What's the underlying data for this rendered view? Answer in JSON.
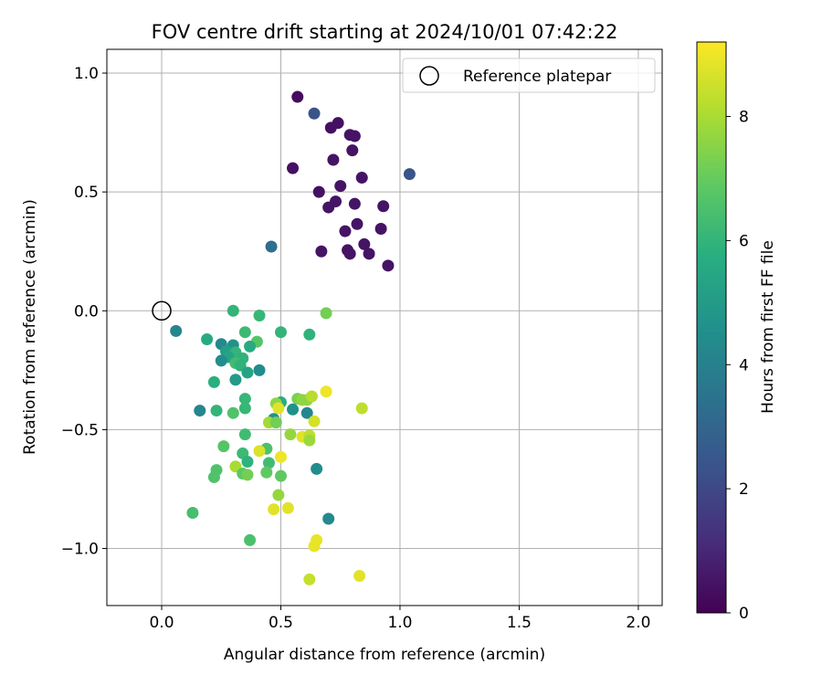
{
  "chart_data": {
    "type": "scatter",
    "title": "FOV centre drift starting at 2024/10/01 07:42:22",
    "xlabel": "Angular distance from reference (arcmin)",
    "ylabel": "Rotation from reference (arcmin)",
    "xlim": [
      -0.23,
      2.1
    ],
    "ylim": [
      -1.24,
      1.1
    ],
    "x_ticks": [
      0.0,
      0.5,
      1.0,
      1.5,
      2.0
    ],
    "x_tick_labels": [
      "0.0",
      "0.5",
      "1.0",
      "1.5",
      "2.0"
    ],
    "y_ticks": [
      1.0,
      0.5,
      0.0,
      -0.5,
      -1.0
    ],
    "y_tick_labels": [
      "1.0",
      "0.5",
      "0.0",
      "−0.5",
      "−1.0"
    ],
    "grid": true,
    "legend": {
      "placement": "top-right",
      "entries": [
        "Reference platepar"
      ]
    },
    "reference_point": {
      "x": 0.0,
      "y": 0.0
    },
    "colorbar": {
      "label": "Hours from first FF file",
      "colormap": "viridis",
      "range": [
        0,
        9.2
      ],
      "ticks": [
        0,
        2,
        4,
        6,
        8
      ],
      "tick_labels": [
        "0",
        "2",
        "4",
        "6",
        "8"
      ]
    },
    "points": [
      {
        "x": 0.57,
        "y": 0.9,
        "c": 0.3
      },
      {
        "x": 0.64,
        "y": 0.83,
        "c": 2.3
      },
      {
        "x": 0.74,
        "y": 0.79,
        "c": 0.4
      },
      {
        "x": 0.71,
        "y": 0.77,
        "c": 0.4
      },
      {
        "x": 0.79,
        "y": 0.74,
        "c": 0.5
      },
      {
        "x": 0.81,
        "y": 0.735,
        "c": 0.5
      },
      {
        "x": 0.8,
        "y": 0.675,
        "c": 0.5
      },
      {
        "x": 0.72,
        "y": 0.635,
        "c": 0.5
      },
      {
        "x": 0.55,
        "y": 0.6,
        "c": 0.4
      },
      {
        "x": 1.04,
        "y": 0.575,
        "c": 2.4
      },
      {
        "x": 0.84,
        "y": 0.56,
        "c": 0.5
      },
      {
        "x": 0.75,
        "y": 0.525,
        "c": 0.5
      },
      {
        "x": 0.66,
        "y": 0.5,
        "c": 0.4
      },
      {
        "x": 0.73,
        "y": 0.46,
        "c": 0.5
      },
      {
        "x": 0.81,
        "y": 0.45,
        "c": 0.5
      },
      {
        "x": 0.7,
        "y": 0.435,
        "c": 0.5
      },
      {
        "x": 0.93,
        "y": 0.44,
        "c": 0.5
      },
      {
        "x": 0.82,
        "y": 0.365,
        "c": 0.5
      },
      {
        "x": 0.92,
        "y": 0.345,
        "c": 0.5
      },
      {
        "x": 0.77,
        "y": 0.335,
        "c": 0.5
      },
      {
        "x": 0.85,
        "y": 0.28,
        "c": 0.5
      },
      {
        "x": 0.46,
        "y": 0.27,
        "c": 3.3
      },
      {
        "x": 0.78,
        "y": 0.255,
        "c": 0.5
      },
      {
        "x": 0.67,
        "y": 0.25,
        "c": 0.5
      },
      {
        "x": 0.79,
        "y": 0.24,
        "c": 0.5
      },
      {
        "x": 0.87,
        "y": 0.24,
        "c": 0.5
      },
      {
        "x": 0.95,
        "y": 0.19,
        "c": 0.5
      },
      {
        "x": 0.3,
        "y": 0.0,
        "c": 6.0
      },
      {
        "x": 0.69,
        "y": -0.01,
        "c": 7.2
      },
      {
        "x": 0.41,
        "y": -0.02,
        "c": 6.1
      },
      {
        "x": 0.06,
        "y": -0.085,
        "c": 4.2
      },
      {
        "x": 0.35,
        "y": -0.09,
        "c": 6.2
      },
      {
        "x": 0.5,
        "y": -0.09,
        "c": 6.0
      },
      {
        "x": 0.62,
        "y": -0.1,
        "c": 5.9
      },
      {
        "x": 0.19,
        "y": -0.12,
        "c": 5.6
      },
      {
        "x": 0.4,
        "y": -0.13,
        "c": 6.7
      },
      {
        "x": 0.25,
        "y": -0.14,
        "c": 4.3
      },
      {
        "x": 0.3,
        "y": -0.145,
        "c": 4.6
      },
      {
        "x": 0.37,
        "y": -0.15,
        "c": 5.6
      },
      {
        "x": 0.27,
        "y": -0.17,
        "c": 5.1
      },
      {
        "x": 0.31,
        "y": -0.175,
        "c": 6.0
      },
      {
        "x": 0.28,
        "y": -0.195,
        "c": 5.3
      },
      {
        "x": 0.34,
        "y": -0.2,
        "c": 5.9
      },
      {
        "x": 0.25,
        "y": -0.21,
        "c": 4.5
      },
      {
        "x": 0.31,
        "y": -0.22,
        "c": 6.3
      },
      {
        "x": 0.33,
        "y": -0.23,
        "c": 5.9
      },
      {
        "x": 0.41,
        "y": -0.25,
        "c": 4.4
      },
      {
        "x": 0.36,
        "y": -0.26,
        "c": 5.3
      },
      {
        "x": 0.31,
        "y": -0.29,
        "c": 5.0
      },
      {
        "x": 0.22,
        "y": -0.3,
        "c": 5.8
      },
      {
        "x": 0.35,
        "y": -0.37,
        "c": 6.1
      },
      {
        "x": 0.5,
        "y": -0.385,
        "c": 5.7
      },
      {
        "x": 0.48,
        "y": -0.39,
        "c": 7.6
      },
      {
        "x": 0.57,
        "y": -0.37,
        "c": 7.3
      },
      {
        "x": 0.59,
        "y": -0.375,
        "c": 7.6
      },
      {
        "x": 0.61,
        "y": -0.375,
        "c": 7.6
      },
      {
        "x": 0.63,
        "y": -0.36,
        "c": 8.2
      },
      {
        "x": 0.69,
        "y": -0.34,
        "c": 9.0
      },
      {
        "x": 0.84,
        "y": -0.41,
        "c": 8.3
      },
      {
        "x": 0.35,
        "y": -0.41,
        "c": 6.1
      },
      {
        "x": 0.23,
        "y": -0.42,
        "c": 6.0
      },
      {
        "x": 0.16,
        "y": -0.42,
        "c": 4.2
      },
      {
        "x": 0.3,
        "y": -0.43,
        "c": 6.6
      },
      {
        "x": 0.49,
        "y": -0.41,
        "c": 8.8
      },
      {
        "x": 0.55,
        "y": -0.415,
        "c": 4.6
      },
      {
        "x": 0.61,
        "y": -0.43,
        "c": 4.2
      },
      {
        "x": 0.47,
        "y": -0.455,
        "c": 4.6
      },
      {
        "x": 0.45,
        "y": -0.47,
        "c": 7.9
      },
      {
        "x": 0.48,
        "y": -0.47,
        "c": 7.2
      },
      {
        "x": 0.64,
        "y": -0.465,
        "c": 8.6
      },
      {
        "x": 0.54,
        "y": -0.52,
        "c": 7.7
      },
      {
        "x": 0.35,
        "y": -0.52,
        "c": 6.3
      },
      {
        "x": 0.59,
        "y": -0.53,
        "c": 8.8
      },
      {
        "x": 0.62,
        "y": -0.525,
        "c": 8.3
      },
      {
        "x": 0.62,
        "y": -0.545,
        "c": 7.8
      },
      {
        "x": 0.26,
        "y": -0.57,
        "c": 6.7
      },
      {
        "x": 0.44,
        "y": -0.58,
        "c": 6.5
      },
      {
        "x": 0.41,
        "y": -0.59,
        "c": 8.7
      },
      {
        "x": 0.34,
        "y": -0.6,
        "c": 6.2
      },
      {
        "x": 0.5,
        "y": -0.615,
        "c": 9.0
      },
      {
        "x": 0.36,
        "y": -0.635,
        "c": 5.9
      },
      {
        "x": 0.45,
        "y": -0.64,
        "c": 6.3
      },
      {
        "x": 0.31,
        "y": -0.655,
        "c": 8.0
      },
      {
        "x": 0.65,
        "y": -0.665,
        "c": 4.5
      },
      {
        "x": 0.23,
        "y": -0.67,
        "c": 6.6
      },
      {
        "x": 0.44,
        "y": -0.68,
        "c": 6.9
      },
      {
        "x": 0.34,
        "y": -0.685,
        "c": 6.8
      },
      {
        "x": 0.36,
        "y": -0.69,
        "c": 7.2
      },
      {
        "x": 0.22,
        "y": -0.7,
        "c": 6.6
      },
      {
        "x": 0.5,
        "y": -0.695,
        "c": 6.9
      },
      {
        "x": 0.49,
        "y": -0.775,
        "c": 7.7
      },
      {
        "x": 0.47,
        "y": -0.835,
        "c": 8.8
      },
      {
        "x": 0.53,
        "y": -0.83,
        "c": 8.8
      },
      {
        "x": 0.13,
        "y": -0.85,
        "c": 6.4
      },
      {
        "x": 0.7,
        "y": -0.875,
        "c": 4.3
      },
      {
        "x": 0.37,
        "y": -0.965,
        "c": 6.5
      },
      {
        "x": 0.65,
        "y": -0.965,
        "c": 8.9
      },
      {
        "x": 0.64,
        "y": -0.99,
        "c": 8.9
      },
      {
        "x": 0.83,
        "y": -1.115,
        "c": 8.8
      },
      {
        "x": 0.62,
        "y": -1.13,
        "c": 8.4
      }
    ]
  }
}
